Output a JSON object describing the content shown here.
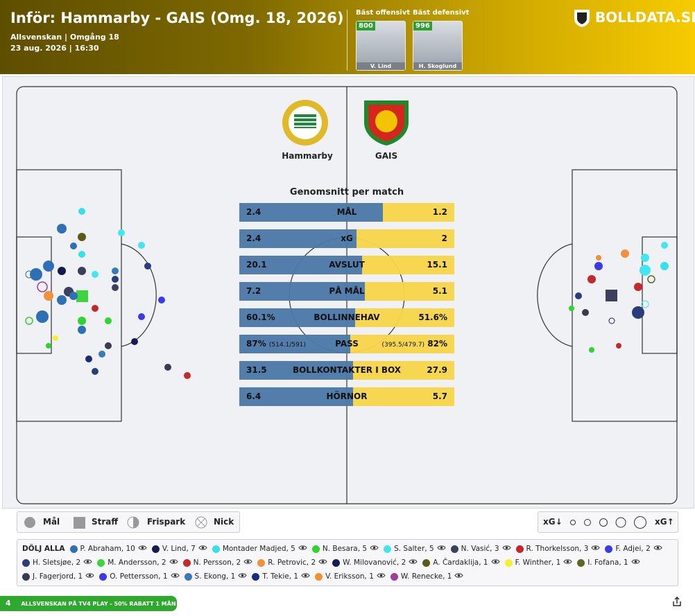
{
  "header": {
    "title": "Inför: Hammarby - GAIS (Omg. 18, 2026)",
    "subtitle": "Allsvenskan | Omgång 18",
    "date": "23 aug. 2026 | 16:30",
    "brand": "BOLLDATA.SE",
    "best": [
      {
        "label": "Bäst offensivt",
        "rating": "800",
        "name": "V. Lind"
      },
      {
        "label": "Bäst defensivt",
        "rating": "996",
        "name": "H. Skoglund"
      }
    ]
  },
  "teams": [
    "Hammarby",
    "GAIS"
  ],
  "stats": {
    "title": "Genomsnitt per match",
    "rows": [
      {
        "label": "MÅL",
        "home": "2.4",
        "away": "1.2"
      },
      {
        "label": "xG",
        "home": "2.4",
        "away": "2"
      },
      {
        "label": "AVSLUT",
        "home": "20.1",
        "away": "15.1"
      },
      {
        "label": "PÅ MÅL",
        "home": "7.2",
        "away": "5.1"
      },
      {
        "label": "BOLLINNEHAV",
        "home": "60.1%",
        "away": "51.6%"
      },
      {
        "label": "PASS",
        "home": "87%",
        "away": "82%",
        "home_detail": "(514.1/591)",
        "away_detail": "(395.5/479.7)"
      },
      {
        "label": "BOLLKONTAKTER I BOX",
        "home": "31.5",
        "away": "27.9"
      },
      {
        "label": "HÖRNOR",
        "home": "6.4",
        "away": "5.7"
      }
    ]
  },
  "legend": {
    "types": [
      "Mål",
      "Straff",
      "Frispark",
      "Nick"
    ],
    "xg_low": "xG↓",
    "xg_high": "xG↑"
  },
  "players": {
    "hide_all": "DÖLJ ALLA",
    "list": [
      {
        "name": "P. Abraham, 10",
        "color": "#2f6fb5"
      },
      {
        "name": "V. Lind, 7",
        "color": "#151a4d"
      },
      {
        "name": "Montader Madjed, 5",
        "color": "#38e0ea"
      },
      {
        "name": "N. Besara, 5",
        "color": "#2fd42f"
      },
      {
        "name": "S. Salter, 5",
        "color": "#41e6f0"
      },
      {
        "name": "N. Vasić, 3",
        "color": "#3c3f5e"
      },
      {
        "name": "R. Thorkelsson, 3",
        "color": "#c4262b"
      },
      {
        "name": "F. Adjei, 2",
        "color": "#3a3ae6"
      },
      {
        "name": "H. Sletsjøe, 2",
        "color": "#2a3d7a"
      },
      {
        "name": "M. Andersson, 2",
        "color": "#3ed43e"
      },
      {
        "name": "N. Persson, 2",
        "color": "#c42a2a"
      },
      {
        "name": "R. Petrovic, 2",
        "color": "#f0923a"
      },
      {
        "name": "W. Milovanović, 2",
        "color": "#161a55"
      },
      {
        "name": "A. Čardaklija, 1",
        "color": "#5c5a1a"
      },
      {
        "name": "F. Winther, 1",
        "color": "#f4f030"
      },
      {
        "name": "I. Fofana, 1",
        "color": "#5e6620"
      },
      {
        "name": "J. Fagerjord, 1",
        "color": "#383b4f"
      },
      {
        "name": "O. Pettersson, 1",
        "color": "#3a3ae8"
      },
      {
        "name": "S. Ekong, 1",
        "color": "#3b7ab8"
      },
      {
        "name": "T. Tekie, 1",
        "color": "#1b2a7a"
      },
      {
        "name": "V. Eriksson, 1",
        "color": "#f0922e"
      },
      {
        "name": "W. Renecke, 1",
        "color": "#9a3f9a"
      }
    ]
  },
  "promo": {
    "badge": "4",
    "text": "ALLSVENSKAN PÅ TV4 PLAY - 50% RABATT 1 MÅN"
  }
}
